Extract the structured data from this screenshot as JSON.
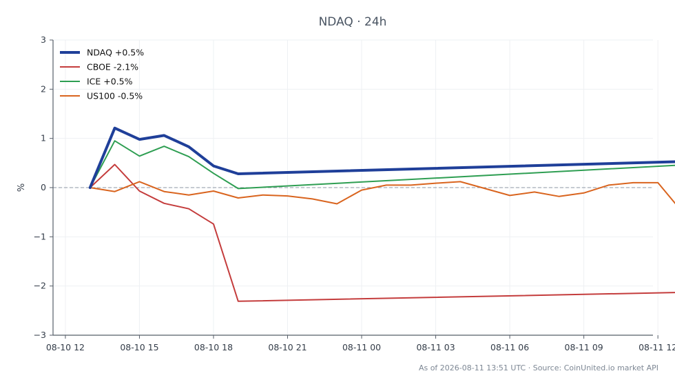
{
  "chart_data": {
    "type": "line",
    "title": "NDAQ · 24h",
    "xlabel": "",
    "ylabel": "%",
    "ylim": [
      -3,
      3
    ],
    "xlim": [
      -0.5,
      23.8
    ],
    "yticks": [
      3,
      2,
      1,
      0,
      -1,
      -2,
      -3
    ],
    "yticklabels": [
      "3",
      "2",
      "1",
      "0",
      "−1",
      "−2",
      "−3"
    ],
    "xticks": [
      {
        "label": "08-10 12",
        "x": 0
      },
      {
        "label": "08-10 15",
        "x": 3
      },
      {
        "label": "08-10 18",
        "x": 6
      },
      {
        "label": "08-10 21",
        "x": 9
      },
      {
        "label": "08-11 00",
        "x": 12
      },
      {
        "label": "08-11 03",
        "x": 15
      },
      {
        "label": "08-11 06",
        "x": 18
      },
      {
        "label": "08-11 09",
        "x": 21
      },
      {
        "label": "08-11 12",
        "x": 24
      }
    ],
    "zero_line": true,
    "grid": true,
    "legend_position": "top-left",
    "series": [
      {
        "name": "NDAQ +0.5%",
        "color": "#1f3f99",
        "width": 4,
        "points": [
          [
            1,
            0
          ],
          [
            2,
            1.21
          ],
          [
            3,
            0.98
          ],
          [
            4,
            1.06
          ],
          [
            5,
            0.83
          ],
          [
            6,
            0.44
          ],
          [
            7,
            0.28
          ],
          [
            25,
            0.53
          ]
        ]
      },
      {
        "name": "CBOE -2.1%",
        "color": "#c43c3c",
        "width": 2,
        "points": [
          [
            1,
            0
          ],
          [
            2,
            0.47
          ],
          [
            3,
            -0.07
          ],
          [
            4,
            -0.32
          ],
          [
            5,
            -0.43
          ],
          [
            6,
            -0.74
          ],
          [
            7,
            -2.31
          ],
          [
            25,
            -2.13
          ]
        ]
      },
      {
        "name": "ICE +0.5%",
        "color": "#2e9e52",
        "width": 2,
        "points": [
          [
            1,
            0
          ],
          [
            2,
            0.95
          ],
          [
            3,
            0.64
          ],
          [
            4,
            0.84
          ],
          [
            5,
            0.63
          ],
          [
            6,
            0.29
          ],
          [
            7,
            -0.02
          ],
          [
            25,
            0.46
          ]
        ]
      },
      {
        "name": "US100 -0.5%",
        "color": "#d9641e",
        "width": 2,
        "points": [
          [
            1,
            0
          ],
          [
            2,
            -0.08
          ],
          [
            3,
            0.12
          ],
          [
            4,
            -0.08
          ],
          [
            5,
            -0.15
          ],
          [
            6,
            -0.07
          ],
          [
            7,
            -0.21
          ],
          [
            8,
            -0.15
          ],
          [
            9,
            -0.17
          ],
          [
            10,
            -0.23
          ],
          [
            11,
            -0.33
          ],
          [
            12,
            -0.05
          ],
          [
            13,
            0.05
          ],
          [
            14,
            0.05
          ],
          [
            15,
            0.09
          ],
          [
            16,
            0.12
          ],
          [
            17,
            -0.02
          ],
          [
            18,
            -0.16
          ],
          [
            19,
            -0.09
          ],
          [
            20,
            -0.18
          ],
          [
            21,
            -0.11
          ],
          [
            22,
            0.05
          ],
          [
            23,
            0.1
          ],
          [
            24,
            0.1
          ],
          [
            25,
            -0.5
          ]
        ]
      }
    ]
  },
  "footer": {
    "caption": "As of 2026-08-11 13:51 UTC · Source: CoinUnited.io market API"
  }
}
